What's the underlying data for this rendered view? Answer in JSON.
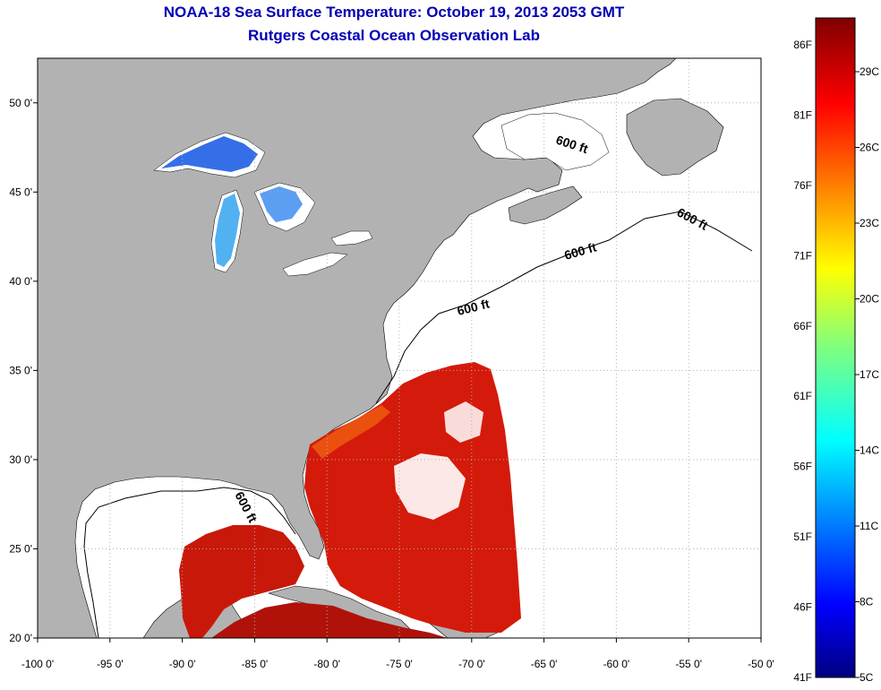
{
  "title": {
    "line1": "NOAA-18 Sea Surface Temperature:  October 19, 2013 2053 GMT",
    "line2": "Rutgers Coastal Ocean Observation Lab"
  },
  "map": {
    "lon_range": [
      -100,
      -50
    ],
    "lat_range": [
      20,
      52.5
    ],
    "x_ticks": [
      {
        "value": -100,
        "label": "-100 0'"
      },
      {
        "value": -95,
        "label": "-95 0'"
      },
      {
        "value": -90,
        "label": "-90 0'"
      },
      {
        "value": -85,
        "label": "-85 0'"
      },
      {
        "value": -80,
        "label": "-80 0'"
      },
      {
        "value": -75,
        "label": "-75 0'"
      },
      {
        "value": -70,
        "label": "-70 0'"
      },
      {
        "value": -65,
        "label": "-65 0'"
      },
      {
        "value": -60,
        "label": "-60 0'"
      },
      {
        "value": -55,
        "label": "-55 0'"
      },
      {
        "value": -50,
        "label": "-50 0'"
      }
    ],
    "y_ticks": [
      {
        "value": 20,
        "label": "20 0'"
      },
      {
        "value": 25,
        "label": "25 0'"
      },
      {
        "value": 30,
        "label": "30 0'"
      },
      {
        "value": 35,
        "label": "35 0'"
      },
      {
        "value": 40,
        "label": "40 0'"
      },
      {
        "value": 45,
        "label": "45 0'"
      },
      {
        "value": 50,
        "label": "50 0'"
      }
    ],
    "contour_labels": [
      "600 ft",
      "600 ft",
      "600 ft",
      "600 ft",
      "600 ft"
    ],
    "colors": {
      "land": "#b2b2b2",
      "ocean_nodata": "#ffffff",
      "grid": "#b0b0b0"
    }
  },
  "colorbar": {
    "fahrenheit_labels": [
      "86F",
      "81F",
      "76F",
      "71F",
      "66F",
      "61F",
      "56F",
      "51F",
      "46F",
      "41F"
    ],
    "celsius_labels": [
      "29C",
      "26C",
      "23C",
      "20C",
      "17C",
      "14C",
      "11C",
      "8C",
      "5C"
    ]
  }
}
